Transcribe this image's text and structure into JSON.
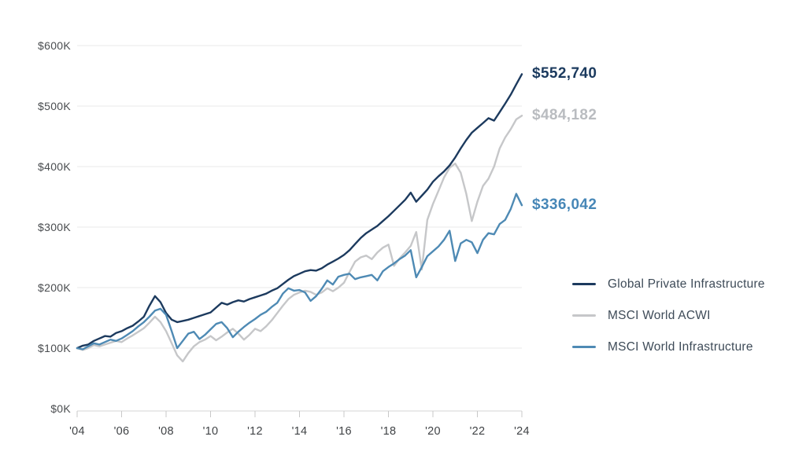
{
  "chart_data": {
    "type": "line",
    "title": "",
    "xlabel": "",
    "ylabel": "",
    "grid": "horizontal",
    "legend_position": "right",
    "x_start": 2004,
    "x_step": 0.25,
    "x_axis": {
      "range": [
        2004,
        2024
      ],
      "ticks": [
        2004,
        2006,
        2008,
        2010,
        2012,
        2014,
        2016,
        2018,
        2020,
        2022,
        2024
      ],
      "tick_labels": [
        "'04",
        "'06",
        "'08",
        "'10",
        "'12",
        "'14",
        "'16",
        "'18",
        "'20",
        "'22",
        "'24"
      ]
    },
    "y_axis": {
      "range": [
        0,
        600
      ],
      "units": "USD thousands",
      "ticks": [
        0,
        100,
        200,
        300,
        400,
        500,
        600
      ],
      "tick_labels": [
        "$0K",
        "$100K",
        "$200K",
        "$300K",
        "$400K",
        "$500K",
        "$600K"
      ]
    },
    "draw_order": [
      1,
      0,
      2
    ],
    "series": [
      {
        "name": "Global Private Infrastructure",
        "color": "#1c3a5e",
        "label_color": "#1b3a5e",
        "end_label": "$552,740",
        "end_value": 552.74,
        "values": [
          100,
          104,
          106,
          112,
          116,
          120,
          119,
          125,
          128,
          133,
          137,
          144,
          152,
          170,
          186,
          176,
          158,
          147,
          143,
          145,
          147,
          150,
          153,
          156,
          159,
          167,
          175,
          172,
          176,
          179,
          177,
          181,
          184,
          187,
          190,
          195,
          199,
          206,
          213,
          219,
          223,
          227,
          229,
          228,
          232,
          238,
          243,
          248,
          254,
          262,
          272,
          282,
          290,
          296,
          302,
          310,
          318,
          327,
          336,
          345,
          357,
          342,
          352,
          362,
          375,
          384,
          392,
          402,
          415,
          430,
          444,
          456,
          464,
          472,
          480,
          476,
          490,
          504,
          519,
          536,
          552.74
        ]
      },
      {
        "name": "MSCI World ACWI",
        "color": "#c6c7c9",
        "label_color": "#b9bcc0",
        "end_label": "$484,182",
        "end_value": 484.182,
        "values": [
          100,
          97,
          100,
          105,
          103,
          106,
          109,
          112,
          110,
          116,
          121,
          127,
          133,
          142,
          152,
          143,
          128,
          108,
          88,
          78,
          92,
          103,
          110,
          114,
          120,
          113,
          119,
          126,
          132,
          124,
          114,
          122,
          132,
          128,
          136,
          146,
          158,
          170,
          181,
          188,
          192,
          195,
          193,
          188,
          192,
          199,
          194,
          200,
          208,
          226,
          243,
          250,
          253,
          247,
          258,
          266,
          271,
          236,
          248,
          258,
          269,
          292,
          230,
          312,
          338,
          360,
          382,
          398,
          405,
          390,
          355,
          310,
          342,
          368,
          380,
          400,
          430,
          448,
          462,
          478,
          484.182
        ]
      },
      {
        "name": "MSCI World Infrastructure",
        "color": "#4e8ab4",
        "label_color": "#4787b7",
        "end_label": "$336,042",
        "end_value": 336.042,
        "values": [
          100,
          98,
          103,
          108,
          106,
          110,
          114,
          112,
          116,
          122,
          128,
          136,
          143,
          152,
          162,
          165,
          155,
          128,
          100,
          112,
          124,
          127,
          115,
          122,
          131,
          140,
          143,
          133,
          118,
          127,
          135,
          142,
          148,
          155,
          160,
          168,
          175,
          190,
          199,
          195,
          196,
          192,
          178,
          186,
          198,
          212,
          205,
          218,
          221,
          223,
          214,
          217,
          219,
          221,
          212,
          227,
          234,
          240,
          247,
          253,
          262,
          217,
          234,
          252,
          260,
          268,
          279,
          294,
          244,
          273,
          279,
          275,
          257,
          279,
          290,
          288,
          305,
          312,
          330,
          355,
          336.042
        ]
      }
    ]
  },
  "colors": {
    "background": "#ffffff",
    "gridline": "#e8e8e8",
    "axis_line": "#d5d5d5",
    "tick_mark": "#c8c8c8",
    "y_tick_text": "#4a4d50",
    "x_tick_text": "#404346",
    "legend_text": "#3e4b58"
  }
}
